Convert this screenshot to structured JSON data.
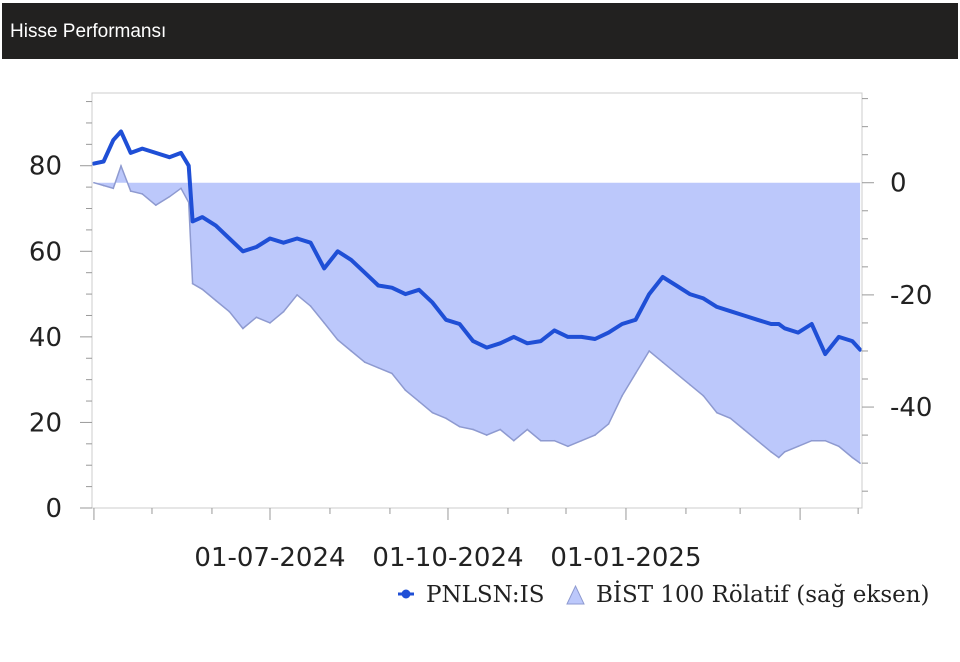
{
  "header": {
    "title": "Hisse Performansı"
  },
  "colors": {
    "line": "#1f4fd6",
    "area_fill": "#bcc8fb",
    "area_edge": "#8e9ad0",
    "plot_border": "#cccccc",
    "header_bg": "#222120"
  },
  "chart_data": {
    "type": "line",
    "title": "",
    "xlabel": "",
    "ylabel": "",
    "x_tick_labels": [
      "01-07-2024",
      "01-10-2024",
      "01-01-2025"
    ],
    "y_left": {
      "ticks": [
        "0",
        "20",
        "40",
        "60",
        "80"
      ],
      "range": [
        0,
        97
      ]
    },
    "y_right": {
      "ticks": [
        "0",
        "-20",
        "-40"
      ],
      "range": [
        -58,
        16
      ]
    },
    "grid": false,
    "legend_position": "bottom-right",
    "series": [
      {
        "name": "PNLSN:IS",
        "kind": "line",
        "axis": "left",
        "x": [
          "2024-04-01",
          "2024-04-06",
          "2024-04-11",
          "2024-04-15",
          "2024-04-20",
          "2024-04-26",
          "2024-05-03",
          "2024-05-10",
          "2024-05-16",
          "2024-05-20",
          "2024-05-22",
          "2024-05-27",
          "2024-06-03",
          "2024-06-10",
          "2024-06-17",
          "2024-06-24",
          "2024-07-01",
          "2024-07-08",
          "2024-07-15",
          "2024-07-22",
          "2024-07-29",
          "2024-08-05",
          "2024-08-12",
          "2024-08-19",
          "2024-08-26",
          "2024-09-02",
          "2024-09-09",
          "2024-09-16",
          "2024-09-23",
          "2024-09-30",
          "2024-10-07",
          "2024-10-14",
          "2024-10-21",
          "2024-10-28",
          "2024-11-04",
          "2024-11-11",
          "2024-11-18",
          "2024-11-25",
          "2024-12-02",
          "2024-12-09",
          "2024-12-16",
          "2024-12-23",
          "2024-12-30",
          "2025-01-06",
          "2025-01-13",
          "2025-01-20",
          "2025-01-27",
          "2025-02-03",
          "2025-02-10",
          "2025-02-17",
          "2025-02-24",
          "2025-03-03",
          "2025-03-10",
          "2025-03-17",
          "2025-03-21",
          "2025-03-24",
          "2025-03-31",
          "2025-04-07",
          "2025-04-14",
          "2025-04-21",
          "2025-04-28",
          "2025-05-02"
        ],
        "values": [
          80.5,
          81,
          86,
          88,
          83,
          84,
          83,
          82,
          83,
          80,
          67,
          68,
          66,
          63,
          60,
          61,
          63,
          62,
          63,
          62,
          56,
          60,
          58,
          55,
          52,
          51.5,
          50,
          51,
          48,
          44,
          43,
          39,
          37.5,
          38.5,
          40,
          38.5,
          39,
          41.5,
          40,
          40,
          39.5,
          41,
          43,
          44,
          50,
          54,
          52,
          50,
          49,
          47,
          46,
          45,
          44,
          43,
          43,
          42,
          41,
          43,
          36,
          40,
          39,
          37
        ]
      },
      {
        "name": "BİST 100 Rölatif (sağ eksen)",
        "kind": "area",
        "axis": "right",
        "x": [
          "2024-04-01",
          "2024-04-06",
          "2024-04-11",
          "2024-04-15",
          "2024-04-20",
          "2024-04-26",
          "2024-05-03",
          "2024-05-10",
          "2024-05-16",
          "2024-05-20",
          "2024-05-22",
          "2024-05-27",
          "2024-06-03",
          "2024-06-10",
          "2024-06-17",
          "2024-06-24",
          "2024-07-01",
          "2024-07-08",
          "2024-07-15",
          "2024-07-22",
          "2024-07-29",
          "2024-08-05",
          "2024-08-12",
          "2024-08-19",
          "2024-08-26",
          "2024-09-02",
          "2024-09-09",
          "2024-09-16",
          "2024-09-23",
          "2024-09-30",
          "2024-10-07",
          "2024-10-14",
          "2024-10-21",
          "2024-10-28",
          "2024-11-04",
          "2024-11-11",
          "2024-11-18",
          "2024-11-25",
          "2024-12-02",
          "2024-12-09",
          "2024-12-16",
          "2024-12-23",
          "2024-12-30",
          "2025-01-06",
          "2025-01-13",
          "2025-01-20",
          "2025-01-27",
          "2025-02-03",
          "2025-02-10",
          "2025-02-17",
          "2025-02-24",
          "2025-03-03",
          "2025-03-10",
          "2025-03-17",
          "2025-03-21",
          "2025-03-24",
          "2025-03-31",
          "2025-04-07",
          "2025-04-14",
          "2025-04-21",
          "2025-04-28",
          "2025-05-02"
        ],
        "values": [
          0,
          -0.5,
          -1,
          3,
          -1.5,
          -2,
          -4,
          -2.5,
          -1,
          -3.5,
          -18,
          -19,
          -21,
          -23,
          -26,
          -24,
          -25,
          -23,
          -20,
          -22,
          -25,
          -28,
          -30,
          -32,
          -33,
          -34,
          -37,
          -39,
          -41,
          -42,
          -43.5,
          -44,
          -45,
          -44,
          -46,
          -44,
          -46,
          -46,
          -47,
          -46,
          -45,
          -43,
          -38,
          -34,
          -30,
          -32,
          -34,
          -36,
          -38,
          -41,
          -42,
          -44,
          -46,
          -48,
          -49,
          -48,
          -47,
          -46,
          -46,
          -47,
          -49,
          -50
        ]
      }
    ]
  }
}
